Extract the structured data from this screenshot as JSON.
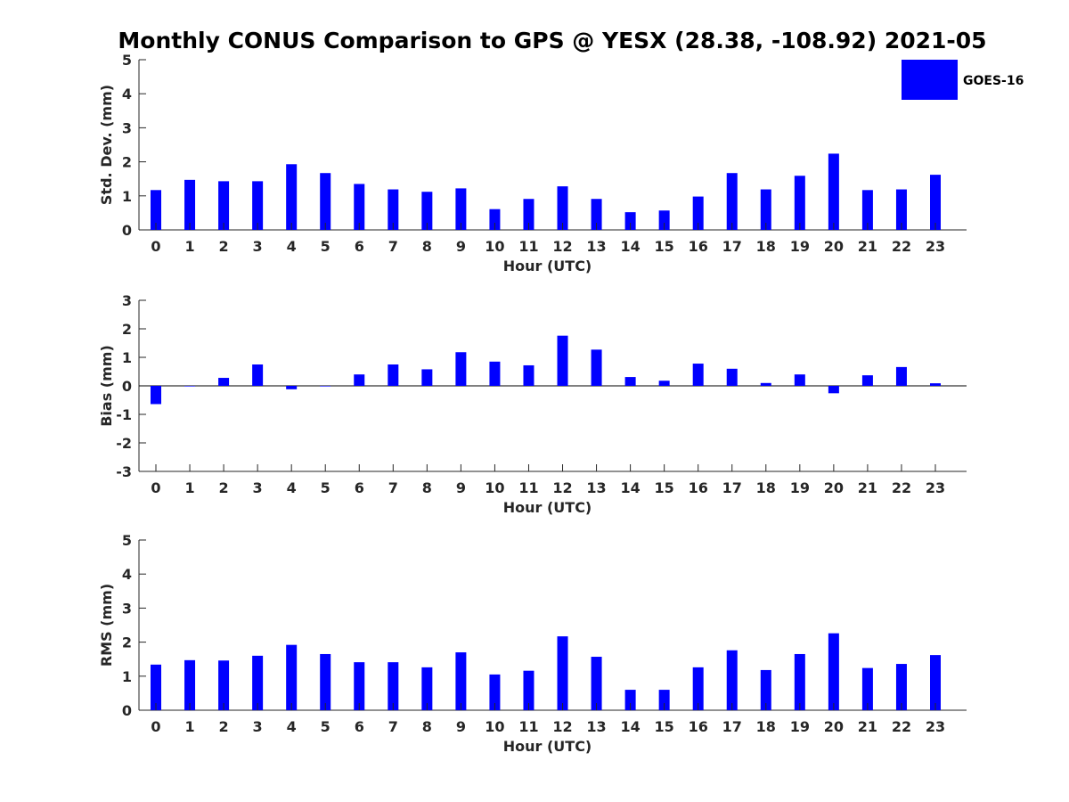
{
  "title": "Monthly CONUS Comparison to GPS @ YESX (28.38, -108.92) 2021-05",
  "legend": {
    "label": "GOES-16",
    "color": "#0000ff"
  },
  "chart_data": [
    {
      "type": "bar",
      "series_name": "GOES-16",
      "x": [
        0,
        1,
        2,
        3,
        4,
        5,
        6,
        7,
        8,
        9,
        10,
        11,
        12,
        13,
        14,
        15,
        16,
        17,
        18,
        19,
        20,
        21,
        22,
        23
      ],
      "values": [
        1.17,
        1.47,
        1.43,
        1.43,
        1.93,
        1.67,
        1.35,
        1.19,
        1.12,
        1.22,
        0.61,
        0.91,
        1.28,
        0.91,
        0.52,
        0.57,
        0.98,
        1.67,
        1.19,
        1.59,
        2.24,
        1.17,
        1.19,
        1.62
      ],
      "xlabel": "Hour (UTC)",
      "ylabel": "Std. Dev. (mm)",
      "ylim": [
        0,
        5
      ],
      "yticks": [
        0,
        1,
        2,
        3,
        4,
        5
      ],
      "zero_line": false,
      "grid": false,
      "legend": "top-right"
    },
    {
      "type": "bar",
      "series_name": "GOES-16",
      "x": [
        0,
        1,
        2,
        3,
        4,
        5,
        6,
        7,
        8,
        9,
        10,
        11,
        12,
        13,
        14,
        15,
        16,
        17,
        18,
        19,
        20,
        21,
        22,
        23
      ],
      "values": [
        -0.64,
        -0.02,
        0.28,
        0.75,
        -0.12,
        -0.02,
        0.4,
        0.75,
        0.58,
        1.18,
        0.85,
        0.72,
        1.76,
        1.27,
        0.31,
        0.18,
        0.78,
        0.6,
        0.1,
        0.4,
        -0.26,
        0.37,
        0.66,
        0.09
      ],
      "xlabel": "Hour (UTC)",
      "ylabel": "Bias (mm)",
      "ylim": [
        -3,
        3
      ],
      "yticks": [
        -3,
        -2,
        -1,
        0,
        1,
        2,
        3
      ],
      "zero_line": true,
      "grid": false
    },
    {
      "type": "bar",
      "series_name": "GOES-16",
      "x": [
        0,
        1,
        2,
        3,
        4,
        5,
        6,
        7,
        8,
        9,
        10,
        11,
        12,
        13,
        14,
        15,
        16,
        17,
        18,
        19,
        20,
        21,
        22,
        23
      ],
      "values": [
        1.34,
        1.47,
        1.46,
        1.6,
        1.92,
        1.65,
        1.41,
        1.41,
        1.26,
        1.7,
        1.05,
        1.16,
        2.17,
        1.57,
        0.6,
        0.6,
        1.26,
        1.76,
        1.18,
        1.65,
        2.26,
        1.24,
        1.36,
        1.62
      ],
      "xlabel": "Hour (UTC)",
      "ylabel": "RMS (mm)",
      "ylim": [
        0,
        5
      ],
      "yticks": [
        0,
        1,
        2,
        3,
        4,
        5
      ],
      "zero_line": false,
      "grid": false
    }
  ]
}
